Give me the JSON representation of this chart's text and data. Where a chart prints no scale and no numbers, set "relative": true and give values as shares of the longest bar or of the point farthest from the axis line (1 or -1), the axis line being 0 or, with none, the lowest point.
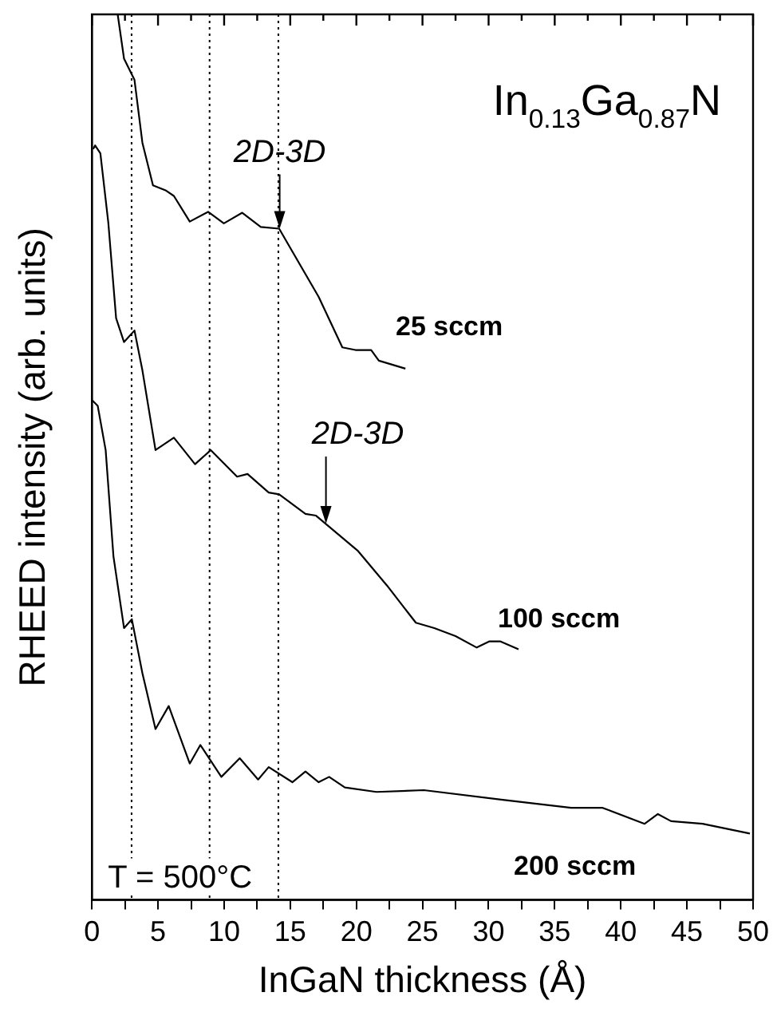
{
  "chart_data": {
    "type": "line",
    "title": "In$_{0.13}$Ga$_{0.87}$N",
    "xlabel": "InGaN thickness (Å)",
    "ylabel": "RHEED intensity (arb. units)",
    "relative": true,
    "xlim": [
      0,
      50
    ],
    "xticks": [
      0,
      {
        "value": 2.5,
        "label": null
      },
      5,
      {
        "value": 7.5,
        "label": null
      },
      10,
      {
        "value": 12.5,
        "label": null
      },
      15,
      {
        "value": 17.5,
        "label": null
      },
      20,
      {
        "value": 22.5,
        "label": null
      },
      25,
      {
        "value": 27.5,
        "label": null
      },
      30,
      {
        "value": 32.5,
        "label": null
      },
      35,
      {
        "value": 37.5,
        "label": null
      },
      40,
      {
        "value": 42.5,
        "label": null
      },
      45,
      {
        "value": 47.5,
        "label": null
      },
      50
    ],
    "legend": false,
    "grid": false,
    "marker": "none",
    "line_style": "solid",
    "series": [
      {
        "name": "25 sccm",
        "color": "#000000",
        "x": [
          1.95,
          2.43,
          3.22,
          3.82,
          4.62,
          5.61,
          6.2,
          7.4,
          8.79,
          9.98,
          11.37,
          12.77,
          14.16,
          15.75,
          17.15,
          18.94,
          19.93,
          21.12,
          21.7,
          23.71
        ],
        "values": [
          1,
          0.95,
          0.926,
          0.855,
          0.807,
          0.801,
          0.795,
          0.766,
          0.777,
          0.764,
          0.776,
          0.76,
          0.758,
          0.717,
          0.681,
          0.624,
          0.621,
          0.621,
          0.609,
          0.6
        ]
      },
      {
        "name": "100 sccm",
        "color": "#000000",
        "x": [
          0.1,
          0.24,
          0.64,
          1.24,
          1.83,
          2.43,
          3.22,
          3.82,
          4.81,
          6.2,
          7.8,
          8.99,
          10.98,
          11.77,
          13.37,
          14.16,
          16.15,
          16.95,
          20.13,
          22.32,
          24.5,
          25.9,
          27.5,
          29.1,
          30.07,
          30.87,
          32.26
        ],
        "values": [
          0.848,
          0.852,
          0.843,
          0.765,
          0.657,
          0.63,
          0.643,
          0.598,
          0.508,
          0.522,
          0.492,
          0.508,
          0.478,
          0.481,
          0.46,
          0.458,
          0.436,
          0.434,
          0.394,
          0.355,
          0.313,
          0.307,
          0.298,
          0.285,
          0.292,
          0.292,
          0.283
        ]
      },
      {
        "name": "200 sccm",
        "color": "#000000",
        "x": [
          0.04,
          0.44,
          1.04,
          1.63,
          2.43,
          3.02,
          3.82,
          4.81,
          5.81,
          7.4,
          8.2,
          9.79,
          11.18,
          12.57,
          13.37,
          15.16,
          16.15,
          17.15,
          17.94,
          19.13,
          21.52,
          25.1,
          31.07,
          36.24,
          38.63,
          41.8,
          42.8,
          43.8,
          46.18,
          49.76
        ],
        "values": [
          0.564,
          0.558,
          0.508,
          0.388,
          0.307,
          0.317,
          0.256,
          0.193,
          0.219,
          0.154,
          0.175,
          0.139,
          0.16,
          0.136,
          0.15,
          0.133,
          0.145,
          0.133,
          0.139,
          0.127,
          0.122,
          0.124,
          0.113,
          0.104,
          0.104,
          0.086,
          0.097,
          0.089,
          0.086,
          0.075
        ]
      }
    ],
    "ref_lines": [
      {
        "axis": "x",
        "value": 3,
        "color": "#000000",
        "line_style": "dotted"
      },
      {
        "axis": "x",
        "value": 8.9,
        "color": "#000000",
        "line_style": "dotted"
      },
      {
        "axis": "x",
        "value": 14.1,
        "color": "#000000",
        "line_style": "dotted"
      }
    ],
    "annotations": [
      {
        "text": "2D-3D",
        "x": 14.2,
        "y": 0.758
      },
      {
        "text": "2D-3D",
        "x": 17.7,
        "y": 0.425
      },
      "T = 500°C"
    ]
  }
}
